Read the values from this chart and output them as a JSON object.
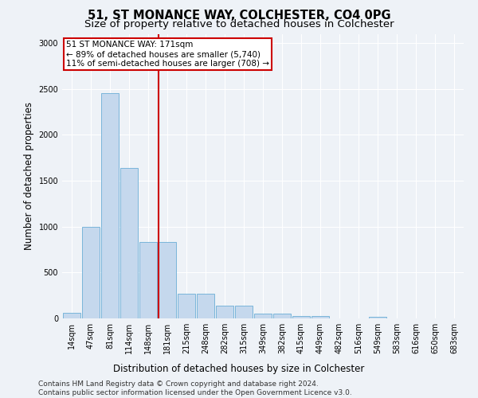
{
  "title": "51, ST MONANCE WAY, COLCHESTER, CO4 0PG",
  "subtitle": "Size of property relative to detached houses in Colchester",
  "xlabel": "Distribution of detached houses by size in Colchester",
  "ylabel": "Number of detached properties",
  "categories": [
    "14sqm",
    "47sqm",
    "81sqm",
    "114sqm",
    "148sqm",
    "181sqm",
    "215sqm",
    "248sqm",
    "282sqm",
    "315sqm",
    "349sqm",
    "382sqm",
    "415sqm",
    "449sqm",
    "482sqm",
    "516sqm",
    "549sqm",
    "583sqm",
    "616sqm",
    "650sqm",
    "683sqm"
  ],
  "values": [
    60,
    1000,
    2450,
    1640,
    830,
    830,
    270,
    270,
    140,
    140,
    50,
    50,
    30,
    30,
    0,
    0,
    20,
    0,
    0,
    0,
    0
  ],
  "bar_color": "#c5d8ed",
  "bar_edgecolor": "#6aaed6",
  "vline_x_index": 5,
  "vline_color": "#cc0000",
  "annotation_text": "51 ST MONANCE WAY: 171sqm\n← 89% of detached houses are smaller (5,740)\n11% of semi-detached houses are larger (708) →",
  "annotation_box_color": "#ffffff",
  "annotation_box_edgecolor": "#cc0000",
  "ylim": [
    0,
    3100
  ],
  "yticks": [
    0,
    500,
    1000,
    1500,
    2000,
    2500,
    3000
  ],
  "background_color": "#eef2f7",
  "plot_background": "#eef2f7",
  "footer": "Contains HM Land Registry data © Crown copyright and database right 2024.\nContains public sector information licensed under the Open Government Licence v3.0.",
  "title_fontsize": 10.5,
  "subtitle_fontsize": 9.5,
  "xlabel_fontsize": 8.5,
  "ylabel_fontsize": 8.5,
  "tick_fontsize": 7,
  "footer_fontsize": 6.5,
  "annotation_fontsize": 7.5
}
